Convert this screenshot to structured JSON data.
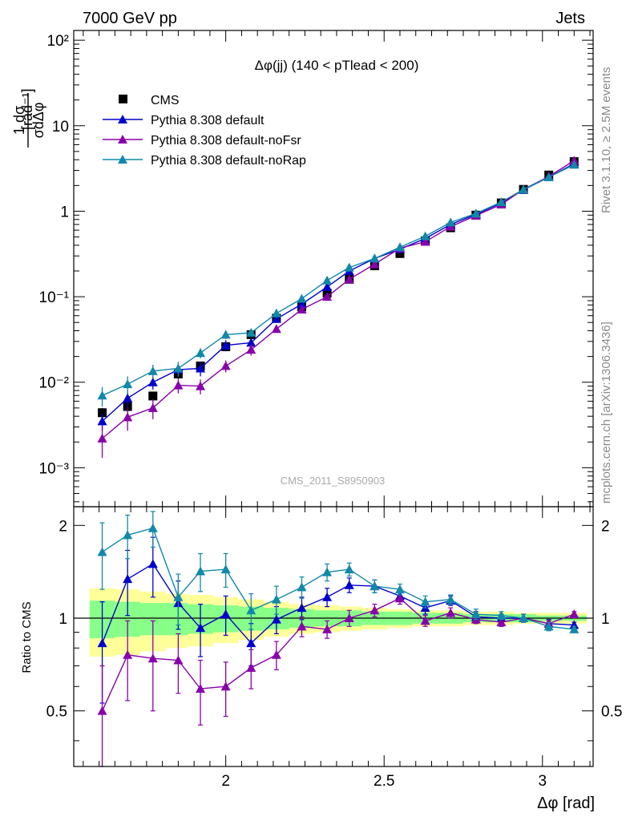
{
  "header": {
    "left": "7000 GeV pp",
    "right": "Jets"
  },
  "side_text": {
    "rivet": "Rivet 3.1.10, ≥ 2.5M events",
    "mcplots": "mcplots.cern.ch [arXiv:1306.3436]"
  },
  "chart_data": [
    {
      "type": "scatter",
      "panel": "main",
      "title": "Δφ(jj) (140 < pTlead <  200)",
      "watermark": "CMS_2011_S8950903",
      "ylabel": "1/σ dσ/dΔφ [rad⁻¹]",
      "yscale": "log",
      "xlim": [
        1.52,
        3.16
      ],
      "ylim": [
        0.00035,
        130
      ],
      "y_ticks": [
        "10⁻³",
        "10⁻²",
        "10⁻¹",
        "1",
        "10",
        "10²"
      ],
      "legend_position": "top-left",
      "x": [
        1.61,
        1.69,
        1.77,
        1.85,
        1.92,
        2.0,
        2.08,
        2.16,
        2.24,
        2.32,
        2.39,
        2.47,
        2.55,
        2.63,
        2.71,
        2.79,
        2.87,
        2.94,
        3.02,
        3.1
      ],
      "series": [
        {
          "name": "CMS",
          "color": "#000000",
          "marker": "square",
          "line": false,
          "values": [
            0.0044,
            0.0052,
            0.0069,
            0.0125,
            0.0155,
            0.026,
            0.036,
            0.056,
            0.076,
            0.11,
            0.16,
            0.23,
            0.32,
            0.45,
            0.64,
            0.9,
            1.25,
            1.8,
            2.65,
            3.8
          ],
          "err": [
            0.0006,
            0.0007,
            0.0008,
            0.0015,
            0.0018,
            0.003,
            0.004,
            0.005,
            0.006,
            0.008,
            0.01,
            0.012,
            0.015,
            0.02,
            0.03,
            0.04,
            0.05,
            0.06,
            0.08,
            0.1
          ]
        },
        {
          "name": "Pythia 8.308 default",
          "color": "#0000cc",
          "marker": "triangle",
          "line": true,
          "values": [
            0.0035,
            0.0065,
            0.01,
            0.014,
            0.0145,
            0.027,
            0.029,
            0.055,
            0.082,
            0.13,
            0.2,
            0.28,
            0.36,
            0.48,
            0.7,
            0.92,
            1.25,
            1.78,
            2.5,
            3.6
          ],
          "err": [
            0.0008,
            0.0015,
            0.0018,
            0.0025,
            0.0028,
            0.004,
            0.004,
            0.005,
            0.006,
            0.008,
            0.01,
            0.012,
            0.015,
            0.02,
            0.025,
            0.03,
            0.04,
            0.05,
            0.06,
            0.08
          ]
        },
        {
          "name": "Pythia 8.308 default-noFsr",
          "color": "#8800aa",
          "marker": "triangle",
          "line": true,
          "values": [
            0.0022,
            0.0039,
            0.005,
            0.0092,
            0.009,
            0.0155,
            0.024,
            0.042,
            0.071,
            0.1,
            0.16,
            0.24,
            0.37,
            0.44,
            0.66,
            0.89,
            1.2,
            1.8,
            2.55,
            3.9
          ],
          "err": [
            0.0009,
            0.0012,
            0.0013,
            0.0018,
            0.0018,
            0.0025,
            0.0035,
            0.004,
            0.005,
            0.007,
            0.01,
            0.012,
            0.015,
            0.02,
            0.025,
            0.03,
            0.04,
            0.05,
            0.06,
            0.08
          ]
        },
        {
          "name": "Pythia 8.308 default-noRap",
          "color": "#1188aa",
          "marker": "triangle",
          "line": true,
          "values": [
            0.007,
            0.0095,
            0.0135,
            0.0145,
            0.022,
            0.036,
            0.038,
            0.064,
            0.095,
            0.155,
            0.22,
            0.28,
            0.38,
            0.51,
            0.74,
            0.94,
            1.28,
            1.8,
            2.5,
            3.5
          ],
          "err": [
            0.0018,
            0.0022,
            0.0025,
            0.0028,
            0.003,
            0.004,
            0.004,
            0.005,
            0.007,
            0.009,
            0.012,
            0.014,
            0.016,
            0.02,
            0.025,
            0.03,
            0.04,
            0.05,
            0.06,
            0.08
          ]
        }
      ]
    },
    {
      "type": "line",
      "panel": "ratio",
      "ylabel": "Ratio to CMS",
      "xlabel": "Δφ [rad]",
      "xlim": [
        1.52,
        3.16
      ],
      "ylim": [
        0.33,
        2.3
      ],
      "x_ticks": [
        2,
        2.5,
        3
      ],
      "y_ticks": [
        0.5,
        1,
        2
      ],
      "reference": 1,
      "x": [
        1.61,
        1.69,
        1.77,
        1.85,
        1.92,
        2.0,
        2.08,
        2.16,
        2.24,
        2.32,
        2.39,
        2.47,
        2.55,
        2.63,
        2.71,
        2.79,
        2.87,
        2.94,
        3.02,
        3.1
      ],
      "band_edges": [
        1.57,
        1.65,
        1.73,
        1.81,
        1.88,
        1.96,
        2.04,
        2.12,
        2.2,
        2.28,
        2.36,
        2.43,
        2.51,
        2.59,
        2.67,
        2.75,
        2.83,
        2.91,
        2.98,
        3.06,
        3.14
      ],
      "bands": {
        "green_color": "#88ff88",
        "yellow_color": "#ffff99",
        "green_halfwidth": [
          0.14,
          0.13,
          0.12,
          0.12,
          0.11,
          0.1,
          0.09,
          0.08,
          0.07,
          0.06,
          0.06,
          0.05,
          0.05,
          0.04,
          0.04,
          0.03,
          0.03,
          0.03,
          0.02,
          0.02
        ],
        "yellow_halfwidth": [
          0.25,
          0.24,
          0.22,
          0.2,
          0.19,
          0.17,
          0.15,
          0.13,
          0.11,
          0.1,
          0.09,
          0.08,
          0.07,
          0.06,
          0.06,
          0.05,
          0.05,
          0.04,
          0.04,
          0.04
        ]
      },
      "series": [
        {
          "name": "Pythia 8.308 default",
          "color": "#0000cc",
          "values": [
            0.83,
            1.34,
            1.5,
            1.12,
            0.93,
            1.03,
            0.83,
            0.99,
            1.08,
            1.17,
            1.28,
            1.27,
            1.18,
            1.08,
            1.14,
            1.01,
            1.0,
            1.0,
            0.96,
            0.95
          ],
          "err": [
            0.3,
            0.32,
            0.33,
            0.2,
            0.18,
            0.15,
            0.13,
            0.1,
            0.09,
            0.08,
            0.07,
            0.06,
            0.05,
            0.05,
            0.04,
            0.04,
            0.03,
            0.03,
            0.03,
            0.02
          ]
        },
        {
          "name": "Pythia 8.308 default-noFsr",
          "color": "#8800aa",
          "values": [
            0.5,
            0.76,
            0.74,
            0.73,
            0.59,
            0.6,
            0.69,
            0.76,
            0.94,
            0.92,
            1.0,
            1.06,
            1.16,
            0.98,
            1.04,
            0.99,
            0.97,
            1.0,
            0.96,
            1.03
          ],
          "err": [
            0.2,
            0.22,
            0.24,
            0.16,
            0.14,
            0.12,
            0.1,
            0.08,
            0.07,
            0.06,
            0.06,
            0.05,
            0.05,
            0.04,
            0.04,
            0.03,
            0.03,
            0.03,
            0.02,
            0.02
          ]
        },
        {
          "name": "Pythia 8.308 default-noRap",
          "color": "#1188aa",
          "values": [
            1.64,
            1.86,
            1.96,
            1.17,
            1.42,
            1.44,
            1.06,
            1.15,
            1.26,
            1.41,
            1.44,
            1.27,
            1.24,
            1.13,
            1.15,
            1.03,
            1.02,
            1.0,
            0.94,
            0.92
          ],
          "err": [
            0.4,
            0.3,
            0.26,
            0.22,
            0.2,
            0.18,
            0.14,
            0.12,
            0.1,
            0.09,
            0.07,
            0.06,
            0.05,
            0.05,
            0.04,
            0.04,
            0.03,
            0.03,
            0.03,
            0.02
          ]
        }
      ]
    }
  ]
}
